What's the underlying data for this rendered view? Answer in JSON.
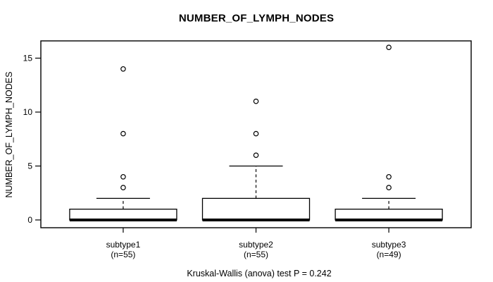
{
  "chart_data": {
    "type": "boxplot",
    "title": "NUMBER_OF_LYMPH_NODES",
    "ylabel": "NUMBER_OF_LYMPH_NODES",
    "xlabel": "",
    "annotation": "Kruskal-Wallis (anova) test P = 0.242",
    "yticks": [
      0,
      5,
      10,
      15
    ],
    "ylim": [
      -0.72,
      16.6
    ],
    "grid": false,
    "legend": "none",
    "groups": [
      {
        "label": "subtype1",
        "sublabel": "(n=55)",
        "n": 55,
        "q1": 0,
        "median": 0,
        "q3": 1,
        "whisker_low": 0,
        "whisker_high": 2,
        "outliers": [
          3,
          4,
          8,
          14
        ]
      },
      {
        "label": "subtype2",
        "sublabel": "(n=55)",
        "n": 55,
        "q1": 0,
        "median": 0,
        "q3": 2,
        "whisker_low": 0,
        "whisker_high": 5,
        "outliers": [
          6,
          8,
          11
        ]
      },
      {
        "label": "subtype3",
        "sublabel": "(n=49)",
        "n": 49,
        "q1": 0,
        "median": 0,
        "q3": 1,
        "whisker_low": 0,
        "whisker_high": 2,
        "outliers": [
          3,
          4,
          16
        ]
      }
    ],
    "colors": {
      "line": "#000000",
      "box_fill": "#ffffff",
      "background": "#ffffff"
    }
  }
}
